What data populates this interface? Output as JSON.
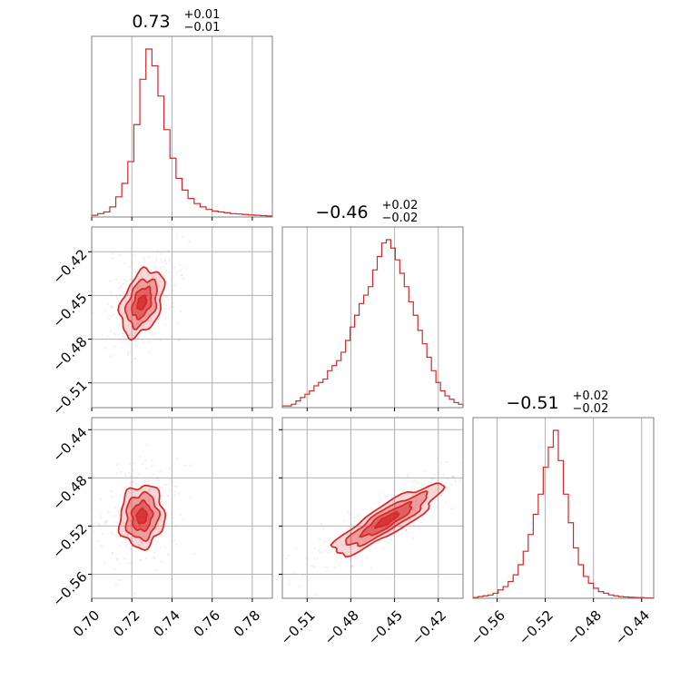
{
  "colors": {
    "series": "#d62728",
    "frame": "#7f7f7f",
    "grid": "#b0b0b0"
  },
  "chart_data": {
    "type": "corner",
    "grid": true,
    "parameters": [
      {
        "title_value": "0.73",
        "title_plus": "+0.01",
        "title_minus": "−0.01",
        "range": [
          0.7,
          0.79
        ],
        "ticks": [
          0.7,
          0.72,
          0.74,
          0.76,
          0.78
        ],
        "tick_labels": [
          "0.70",
          "0.72",
          "0.74",
          "0.76",
          "0.78"
        ],
        "hist_values": [
          0.01,
          0.02,
          0.03,
          0.06,
          0.12,
          0.2,
          0.33,
          0.55,
          0.82,
          1.0,
          0.9,
          0.72,
          0.52,
          0.35,
          0.23,
          0.16,
          0.11,
          0.08,
          0.06,
          0.045,
          0.035,
          0.03,
          0.025,
          0.02,
          0.018,
          0.015,
          0.012,
          0.01,
          0.008,
          0.006
        ]
      },
      {
        "title_value": "−0.46",
        "title_plus": "+0.02",
        "title_minus": "−0.02",
        "range": [
          -0.527,
          -0.403
        ],
        "ticks": [
          -0.51,
          -0.48,
          -0.45,
          -0.42
        ],
        "tick_labels": [
          "−0.51",
          "−0.48",
          "−0.45",
          "−0.42"
        ],
        "hist_values": [
          0.01,
          0.01,
          0.02,
          0.04,
          0.06,
          0.08,
          0.1,
          0.13,
          0.15,
          0.17,
          0.22,
          0.25,
          0.28,
          0.33,
          0.4,
          0.48,
          0.55,
          0.62,
          0.67,
          0.72,
          0.82,
          0.9,
          0.98,
          1.0,
          0.95,
          0.88,
          0.8,
          0.72,
          0.63,
          0.55,
          0.46,
          0.38,
          0.3,
          0.22,
          0.15,
          0.1,
          0.07,
          0.05,
          0.03,
          0.02
        ]
      },
      {
        "title_value": "−0.51",
        "title_plus": "+0.02",
        "title_minus": "−0.02",
        "range": [
          -0.58,
          -0.43
        ],
        "ticks": [
          -0.56,
          -0.52,
          -0.48,
          -0.44
        ],
        "tick_labels": [
          "−0.56",
          "−0.52",
          "−0.48",
          "−0.44"
        ],
        "hist_values": [
          0.005,
          0.01,
          0.015,
          0.02,
          0.03,
          0.05,
          0.07,
          0.1,
          0.14,
          0.2,
          0.28,
          0.38,
          0.5,
          0.62,
          0.78,
          0.9,
          1.0,
          0.82,
          0.62,
          0.45,
          0.3,
          0.2,
          0.13,
          0.09,
          0.06,
          0.04,
          0.03,
          0.02,
          0.015,
          0.01,
          0.008,
          0.006,
          0.005,
          0.004,
          0.003,
          0.002
        ]
      }
    ],
    "pairs": [
      {
        "x_param": 0,
        "y_param": 1,
        "center": [
          0.725,
          -0.455
        ],
        "contour_radii": [
          [
            0.0095,
            0.024
          ],
          [
            0.0068,
            0.017
          ],
          [
            0.0042,
            0.011
          ],
          [
            0.002,
            0.005
          ]
        ],
        "rotation": 0.35
      },
      {
        "x_param": 0,
        "y_param": 2,
        "center": [
          0.725,
          -0.512
        ],
        "contour_radii": [
          [
            0.011,
            0.026
          ],
          [
            0.008,
            0.019
          ],
          [
            0.005,
            0.012
          ],
          [
            0.0025,
            0.006
          ]
        ],
        "rotation": 0.1
      },
      {
        "x_param": 1,
        "y_param": 2,
        "center": [
          -0.455,
          -0.515
        ],
        "contour_radii": [
          [
            0.043,
            0.012
          ],
          [
            0.032,
            0.0085
          ],
          [
            0.02,
            0.0055
          ],
          [
            0.009,
            0.0028
          ]
        ],
        "rotation": -0.55
      }
    ]
  }
}
